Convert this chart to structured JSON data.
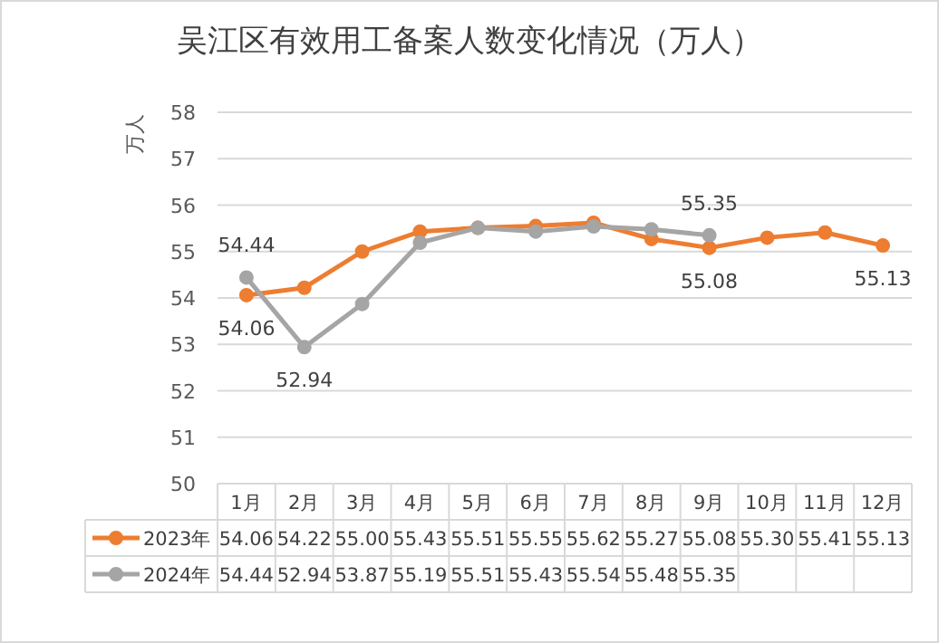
{
  "chart_data": {
    "type": "line",
    "title": "吴江区有效用工备案人数变化情况（万人）",
    "ylabel": "万人",
    "categories": [
      "1月",
      "2月",
      "3月",
      "4月",
      "5月",
      "6月",
      "7月",
      "8月",
      "9月",
      "10月",
      "11月",
      "12月"
    ],
    "series": [
      {
        "name": "2023年",
        "color": "#ed7d31",
        "values": [
          54.06,
          54.22,
          55.0,
          55.43,
          55.51,
          55.55,
          55.62,
          55.27,
          55.08,
          55.3,
          55.41,
          55.13
        ],
        "value_labels": [
          "54.06",
          "54.22",
          "55.00",
          "55.43",
          "55.51",
          "55.55",
          "55.62",
          "55.27",
          "55.08",
          "55.30",
          "55.41",
          "55.13"
        ]
      },
      {
        "name": "2024年",
        "color": "#a5a5a5",
        "values": [
          54.44,
          52.94,
          53.87,
          55.19,
          55.51,
          55.43,
          55.54,
          55.48,
          55.35,
          null,
          null,
          null
        ]
      }
    ],
    "annotations": [
      {
        "text": "54.06",
        "x": "1月",
        "y": 54.06
      },
      {
        "text": "55.08",
        "x": "9月",
        "y": 55.08
      },
      {
        "text": "55.13",
        "x": "12月",
        "y": 55.13
      },
      {
        "text": "54.44",
        "x": "1月",
        "y": 54.44
      },
      {
        "text": "52.94",
        "x": "2月",
        "y": 52.94
      },
      {
        "text": "55.35",
        "x": "9月",
        "y": 55.35
      }
    ],
    "ylim": [
      50,
      58
    ],
    "yticks": [
      50,
      51,
      52,
      53,
      54,
      55,
      56,
      57,
      58
    ],
    "grid": "y",
    "legend": "bottom",
    "marker": "circle",
    "line_style": "solid",
    "data_labels": true
  }
}
